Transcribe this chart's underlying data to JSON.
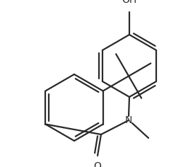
{
  "background": "#ffffff",
  "line_color": "#2a2a2a",
  "line_width": 1.6,
  "dbo": 0.018,
  "figsize": [
    2.49,
    2.36
  ],
  "dpi": 100,
  "xlim": [
    0,
    249
  ],
  "ylim": [
    0,
    236
  ]
}
